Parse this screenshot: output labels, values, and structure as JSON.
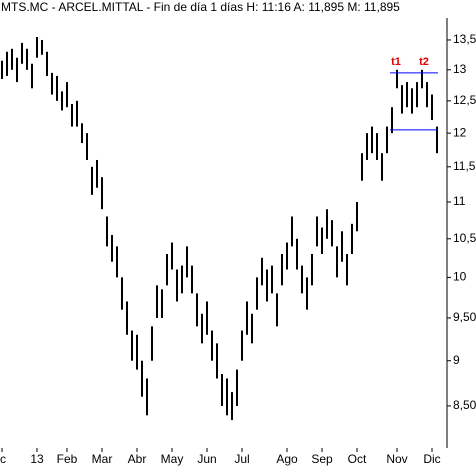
{
  "chart_data": {
    "type": "range-bar",
    "title": "MTS.MC - ARCEL.MITTAL - Fin de día 1 días  H: 11:16  A: 11,895  M: 11,895",
    "log_scale": true,
    "color": "#000000",
    "categories": [
      "c",
      null,
      null,
      null,
      null,
      null,
      null,
      "13",
      null,
      null,
      null,
      null,
      null,
      "Feb",
      null,
      null,
      null,
      null,
      null,
      null,
      "Mar",
      null,
      null,
      null,
      null,
      null,
      null,
      "Abr",
      null,
      null,
      null,
      null,
      null,
      null,
      "May",
      null,
      null,
      null,
      null,
      null,
      null,
      "Jun",
      null,
      null,
      null,
      null,
      null,
      null,
      "Jul",
      null,
      null,
      null,
      null,
      null,
      null,
      null,
      null,
      "Ago",
      null,
      null,
      null,
      null,
      null,
      null,
      "Sep",
      null,
      null,
      null,
      null,
      null,
      null,
      "Oct",
      null,
      null,
      null,
      null,
      null,
      null,
      null,
      "Nov",
      null,
      null,
      null,
      null,
      null,
      null,
      "Dic",
      null
    ],
    "high": [
      13.15,
      13.3,
      13.35,
      13.2,
      13.45,
      13.35,
      13.1,
      13.55,
      13.5,
      13.3,
      12.95,
      12.9,
      12.65,
      12.8,
      12.45,
      12.5,
      12.15,
      12.0,
      11.5,
      11.6,
      11.35,
      10.8,
      10.55,
      10.4,
      10.0,
      9.7,
      9.35,
      9.3,
      9.0,
      8.8,
      9.4,
      9.9,
      9.85,
      10.3,
      10.45,
      10.1,
      10.15,
      10.4,
      10.15,
      9.8,
      9.55,
      9.7,
      9.35,
      9.2,
      8.85,
      8.8,
      8.65,
      8.9,
      9.35,
      9.7,
      9.55,
      10.0,
      10.25,
      10.1,
      10.15,
      9.8,
      10.3,
      10.45,
      10.8,
      10.5,
      10.15,
      10.0,
      10.3,
      10.8,
      10.65,
      10.9,
      10.75,
      10.4,
      10.6,
      10.3,
      10.7,
      11.0,
      11.7,
      12.0,
      12.1,
      12.0,
      11.7,
      12.1,
      12.4,
      13.0,
      12.75,
      12.8,
      12.7,
      12.8,
      13.0,
      12.8,
      12.6,
      12.1
    ],
    "low": [
      12.85,
      12.9,
      13.0,
      12.8,
      13.1,
      13.0,
      12.7,
      13.2,
      13.25,
      12.9,
      12.6,
      12.5,
      12.35,
      12.4,
      12.1,
      12.1,
      11.85,
      11.6,
      11.1,
      11.2,
      10.9,
      10.4,
      10.2,
      10.0,
      9.6,
      9.3,
      9.0,
      8.9,
      8.6,
      8.4,
      9.0,
      9.5,
      9.5,
      9.9,
      10.1,
      9.7,
      9.8,
      10.0,
      9.8,
      9.4,
      9.2,
      9.3,
      9.0,
      8.8,
      8.5,
      8.4,
      8.35,
      8.5,
      9.0,
      9.3,
      9.2,
      9.6,
      9.9,
      9.7,
      9.8,
      9.4,
      9.9,
      10.1,
      10.4,
      10.1,
      9.8,
      9.6,
      9.9,
      10.4,
      10.3,
      10.5,
      10.4,
      10.0,
      10.2,
      9.9,
      10.3,
      10.6,
      11.3,
      11.6,
      11.7,
      11.6,
      11.3,
      11.7,
      12.0,
      12.7,
      12.3,
      12.4,
      12.3,
      12.4,
      12.7,
      12.4,
      12.2,
      11.7
    ],
    "ylim": [
      8.06,
      13.88
    ],
    "yticks": [
      {
        "value": 13.5,
        "label": "13,5"
      },
      13,
      {
        "value": 12.5,
        "label": "12,5"
      },
      12,
      {
        "value": 11.5,
        "label": "11,5"
      },
      11,
      {
        "value": 10.5,
        "label": "10,5"
      },
      10,
      {
        "value": 9.5,
        "label": "9,50"
      },
      9,
      {
        "value": 8.5,
        "label": "8,50"
      }
    ],
    "hlines": [
      {
        "value": 12.95,
        "color": "#0000ff"
      },
      {
        "value": 12.05,
        "color": "#0000ff"
      }
    ],
    "annotations": [
      {
        "text": "t1",
        "color": "#e00000"
      },
      {
        "text": "t2",
        "color": "#e00000"
      }
    ]
  }
}
